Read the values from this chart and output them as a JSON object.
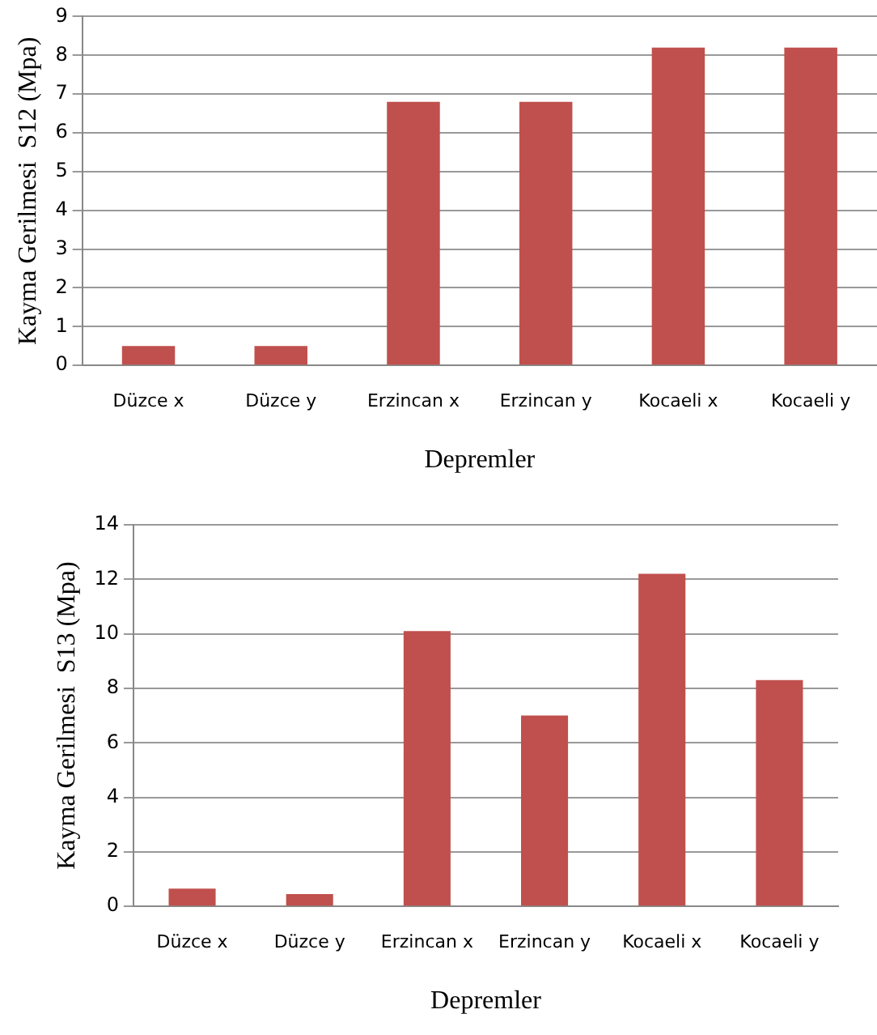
{
  "chart_data": [
    {
      "type": "bar",
      "xlabel": "Depremler",
      "ylabel": "Kayma Gerilmesi  S12 (Mpa)",
      "categories": [
        "Düzce x",
        "Düzce y",
        "Erzincan x",
        "Erzincan y",
        "Kocaeli x",
        "Kocaeli y"
      ],
      "values": [
        0.5,
        0.5,
        6.8,
        6.8,
        8.2,
        8.2
      ],
      "color": "#c0504d",
      "ylim": [
        0,
        9
      ],
      "yticks": [
        0,
        1,
        2,
        3,
        4,
        5,
        6,
        7,
        8,
        9
      ],
      "grid": "y",
      "legend": false
    },
    {
      "type": "bar",
      "xlabel": "Depremler",
      "ylabel": "Kayma Gerilmesi  S13 (Mpa)",
      "categories": [
        "Düzce x",
        "Düzce y",
        "Erzincan x",
        "Erzincan y",
        "Kocaeli x",
        "Kocaeli y"
      ],
      "values": [
        0.65,
        0.45,
        10.1,
        7.0,
        12.2,
        8.3
      ],
      "color": "#c0504d",
      "ylim": [
        0,
        14
      ],
      "yticks": [
        0,
        2,
        4,
        6,
        8,
        10,
        12,
        14
      ],
      "grid": "y",
      "legend": false
    }
  ]
}
